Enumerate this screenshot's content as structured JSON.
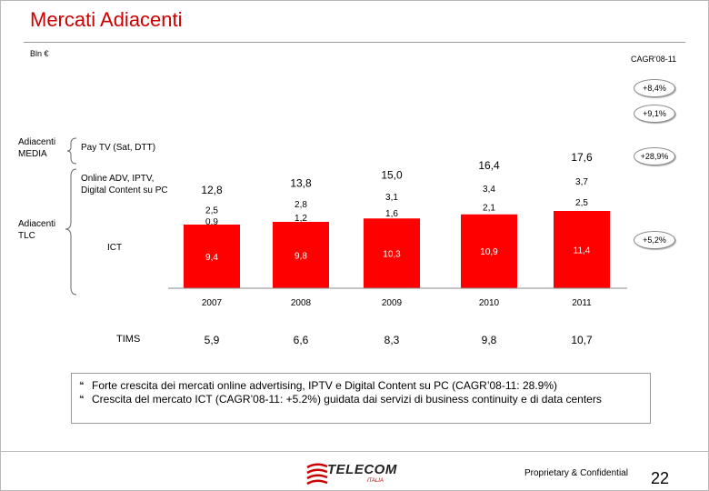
{
  "header": {
    "title": "Mercati Adiacenti",
    "units": "Bln €"
  },
  "cagr_header": "CAGR'08-11",
  "labels": {
    "media": "Adiacenti\nMEDIA",
    "tlc": "Adiacenti\nTLC",
    "paytv": "Pay TV (Sat, DTT)",
    "online": "Online ADV, IPTV,\nDigital Content su PC",
    "ict": "ICT",
    "tims": "TIMS"
  },
  "cagr_values": {
    "total": "+8,4%",
    "media": "+9,1%",
    "online": "+28,9%",
    "ict": "+5,2%"
  },
  "chart_data": {
    "type": "bar",
    "stacked": true,
    "categories": [
      "2007",
      "2008",
      "2009",
      "2010",
      "2011"
    ],
    "series": [
      {
        "name": "ICT",
        "values": [
          9.4,
          9.8,
          10.3,
          10.9,
          11.4
        ],
        "labels": [
          "9,4",
          "9,8",
          "10,3",
          "10,9",
          "11,4"
        ],
        "color": "#ff0000"
      },
      {
        "name": "Online ADV, IPTV, Digital Content su PC",
        "values": [
          0.9,
          1.2,
          1.6,
          2.1,
          2.5
        ],
        "labels": [
          "0,9",
          "1,2",
          "1,6",
          "2,1",
          "2,5"
        ],
        "color": "#ffffff"
      },
      {
        "name": "Pay TV (Sat, DTT)",
        "values": [
          2.5,
          2.8,
          3.1,
          3.4,
          3.7
        ],
        "labels": [
          "2,5",
          "2,8",
          "3,1",
          "3,4",
          "3,7"
        ],
        "color": "#ffffff"
      }
    ],
    "totals": [
      "12,8",
      "13,8",
      "15,0",
      "16,4",
      "17,6"
    ],
    "tims": [
      "5,9",
      "6,6",
      "8,3",
      "9,8",
      "10,7"
    ],
    "ylabel": "Bln €"
  },
  "bullets": [
    "Forte crescita dei mercati online advertising, IPTV e Digital Content su PC (CAGR’08-11: 28.9%)",
    "Crescita del mercato ICT (CAGR’08-11: +5.2%) guidata dai servizi di business continuity e di data centers"
  ],
  "footer": {
    "logo": "TELECOM",
    "logo_sub": "ITALIA",
    "proprietary": "Proprietary & Confidential",
    "page": "22"
  }
}
